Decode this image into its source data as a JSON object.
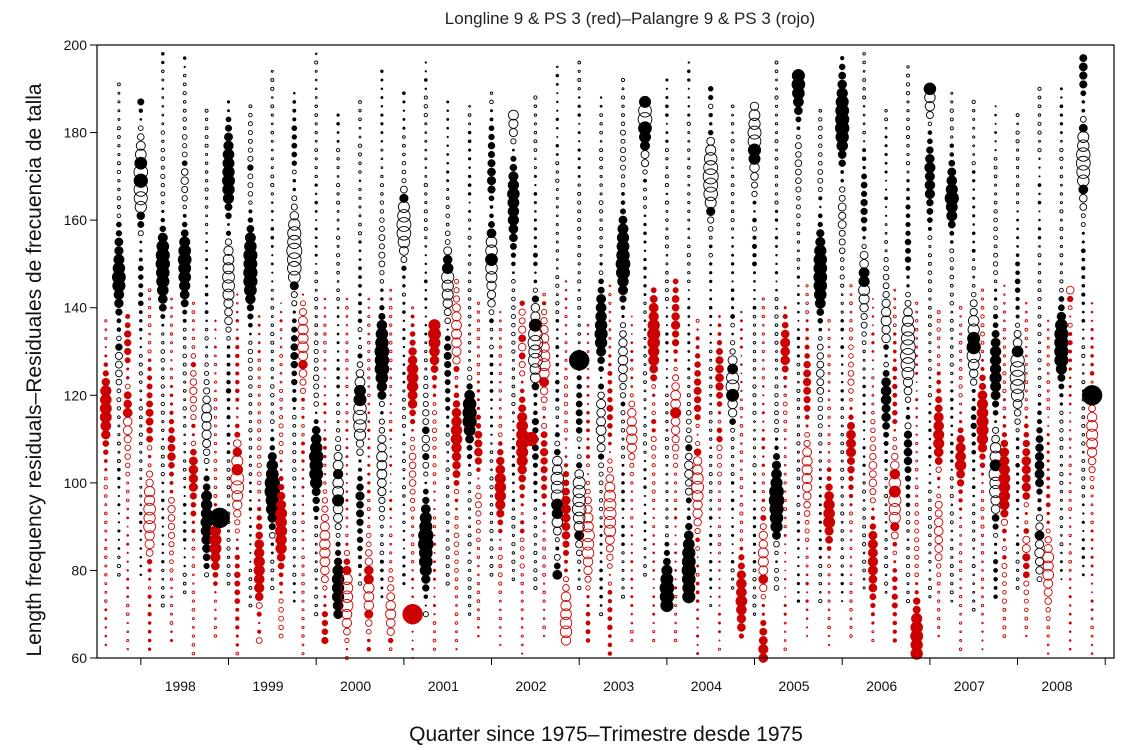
{
  "chart_data": {
    "type": "scatter",
    "title": "Longline 9 & PS 3 (red)–Palangre 9 & PS 3 (rojo)",
    "xlabel": "Quarter since 1975–Trimestre desde 1975",
    "ylabel": "Length frequency residuals–Residuales de frecuencia de talla",
    "x_tick_labels": [
      "1998",
      "1999",
      "2000",
      "2001",
      "2002",
      "2003",
      "2004",
      "2005",
      "2006",
      "2007",
      "2008"
    ],
    "y_tick_labels": [
      "60",
      "80",
      "100",
      "120",
      "140",
      "160",
      "180",
      "200"
    ],
    "x_range_years": [
      1997.5,
      2009.1
    ],
    "ylim": [
      60,
      200
    ],
    "grid": false,
    "legend": "none",
    "marker_encoding": "Filled circle = positive residual; open circle = negative residual; circle area proportional to residual magnitude",
    "colors": {
      "longline": "#000000",
      "purse_seine": "#cc0000"
    },
    "series": [
      {
        "name": "Longline 9",
        "color": "#000000",
        "length_range": [
          70,
          198
        ],
        "quarters": [
          1997.75,
          1998.0,
          1998.25,
          1998.5,
          1998.75,
          1999.0,
          1999.25,
          1999.5,
          1999.75,
          2000.0,
          2000.25,
          2000.5,
          2000.75,
          2001.0,
          2001.25,
          2001.5,
          2001.75,
          2002.0,
          2002.25,
          2002.5,
          2002.75,
          2003.0,
          2003.25,
          2003.5,
          2003.75,
          2004.0,
          2004.25,
          2004.5,
          2004.75,
          2005.0,
          2005.25,
          2005.5,
          2005.75,
          2006.0,
          2006.25,
          2006.5,
          2006.75,
          2007.0,
          2007.25,
          2007.5,
          2007.75,
          2008.0,
          2008.25,
          2008.5,
          2008.75
        ]
      },
      {
        "name": "PS 3",
        "color": "#cc0000",
        "length_range": [
          60,
          146
        ],
        "quarters": [
          1997.6,
          1997.85,
          1998.1,
          1998.35,
          1998.6,
          1998.85,
          1999.1,
          1999.35,
          1999.6,
          1999.85,
          2000.1,
          2000.35,
          2000.6,
          2000.85,
          2001.1,
          2001.35,
          2001.6,
          2001.85,
          2002.1,
          2002.35,
          2002.6,
          2002.85,
          2003.1,
          2003.35,
          2003.6,
          2003.85,
          2004.1,
          2004.35,
          2004.6,
          2004.85,
          2005.1,
          2005.35,
          2005.6,
          2005.85,
          2006.1,
          2006.35,
          2006.6,
          2006.85,
          2007.1,
          2007.35,
          2007.6,
          2007.85,
          2008.1,
          2008.35,
          2008.6,
          2008.85
        ]
      }
    ],
    "notable_points": [
      {
        "series": "Longline 9",
        "year": 1998.9,
        "length": 92,
        "sign": "positive",
        "size": "large"
      },
      {
        "series": "Longline 9",
        "year": 2003.0,
        "length": 128,
        "sign": "positive",
        "size": "large"
      },
      {
        "series": "Longline 9",
        "year": 2008.85,
        "length": 120,
        "sign": "positive",
        "size": "large"
      },
      {
        "series": "PS 3",
        "year": 2001.1,
        "length": 70,
        "sign": "positive",
        "size": "large"
      },
      {
        "series": "PS 3",
        "year": 2002.45,
        "length": 110,
        "sign": "positive",
        "size": "medium"
      }
    ]
  }
}
